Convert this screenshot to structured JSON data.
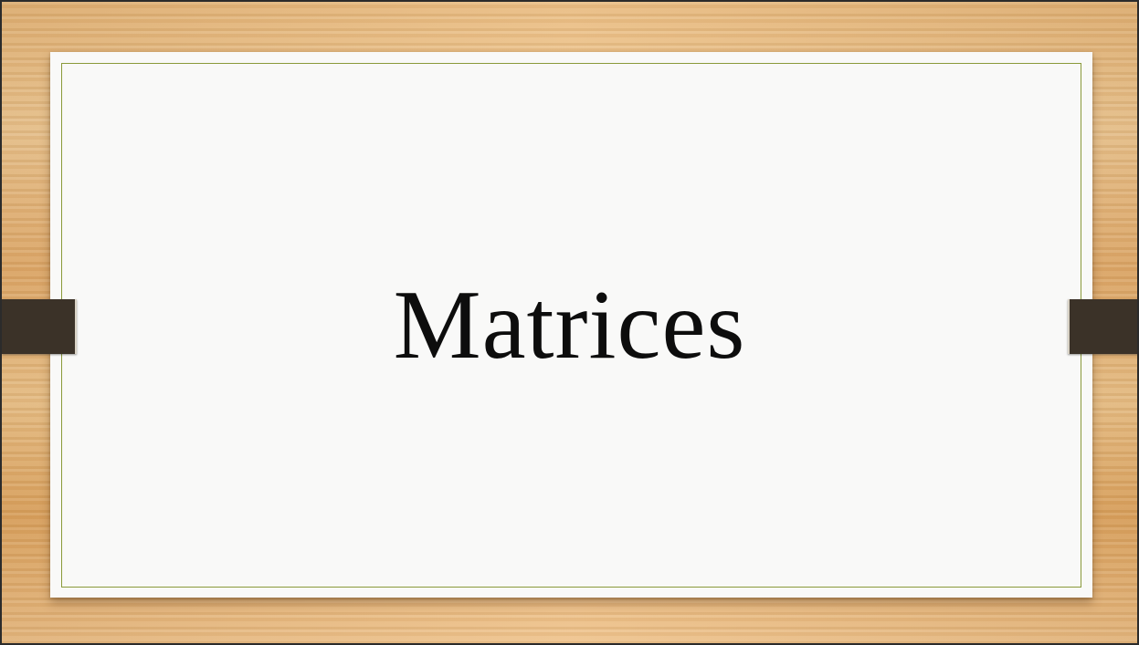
{
  "slide": {
    "title": "Matrices"
  },
  "colors": {
    "background_wood": "#e8b97c",
    "card": "#f9f9f8",
    "card_border": "#8a9a3a",
    "tab": "#3b3228",
    "title_text": "#0d0d0d"
  }
}
